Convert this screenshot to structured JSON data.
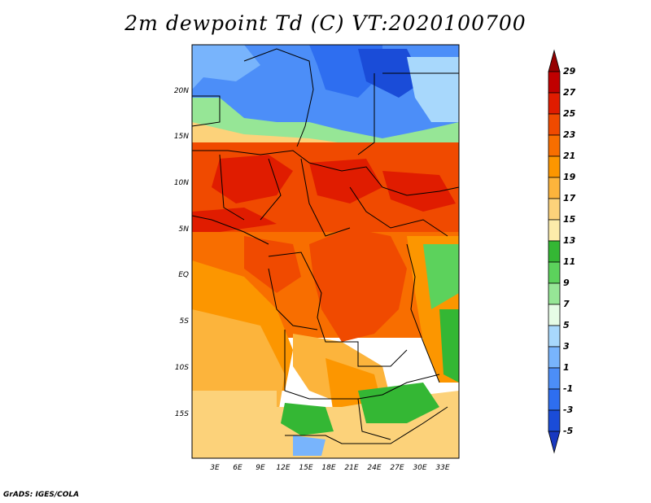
{
  "title": "2m dewpoint Td (C) VT:2020100700",
  "credit": "GrADS: IGES/COLA",
  "map": {
    "lon_labels": [
      "3E",
      "6E",
      "9E",
      "12E",
      "15E",
      "18E",
      "21E",
      "24E",
      "27E",
      "30E",
      "33E"
    ],
    "lat_labels": [
      "20N",
      "15N",
      "10N",
      "5N",
      "EQ",
      "5S",
      "10S",
      "15S"
    ]
  },
  "colorbar": {
    "labels": [
      "29",
      "27",
      "25",
      "23",
      "21",
      "19",
      "17",
      "15",
      "13",
      "11",
      "9",
      "7",
      "5",
      "3",
      "1",
      "-1",
      "-3",
      "-5"
    ],
    "colors": [
      "#960000",
      "#c00000",
      "#e01c00",
      "#f04a00",
      "#f86e00",
      "#fc9600",
      "#fcb43c",
      "#fcd27a",
      "#fcecaa",
      "#34b734",
      "#5cd25c",
      "#96e696",
      "#e6fce6",
      "#a8d8fc",
      "#78b4fc",
      "#4c8ef8",
      "#2e6ef0",
      "#1a4cd8",
      "#1838c0"
    ]
  }
}
